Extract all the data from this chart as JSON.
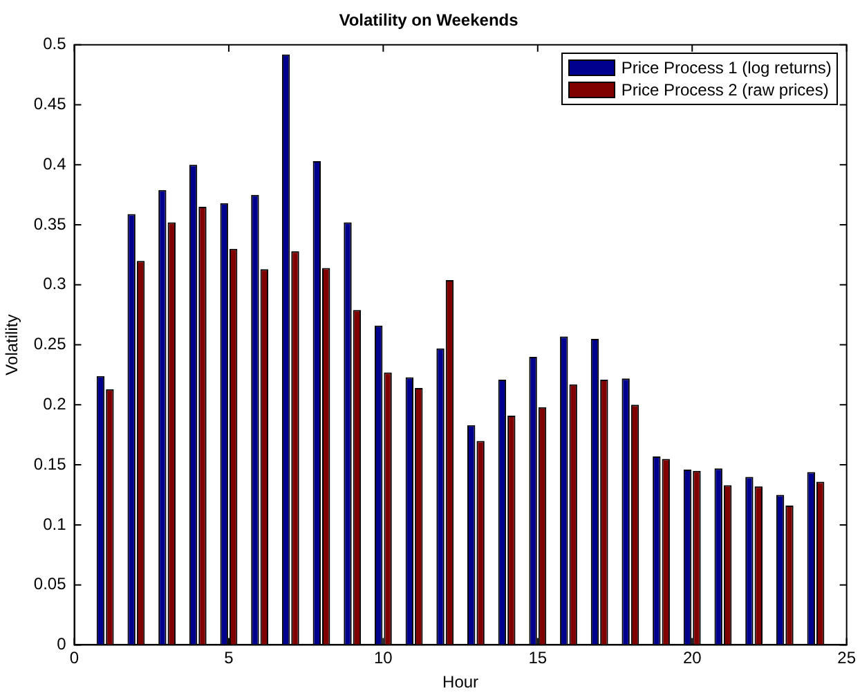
{
  "chart_data": {
    "type": "bar",
    "title": "Volatility on Weekends",
    "xlabel": "Hour",
    "ylabel": "Volatility",
    "x": [
      1,
      2,
      3,
      4,
      5,
      6,
      7,
      8,
      9,
      10,
      11,
      12,
      13,
      14,
      15,
      16,
      17,
      18,
      19,
      20,
      21,
      22,
      23,
      24
    ],
    "series": [
      {
        "name": "Price Process 1 (log returns)",
        "color": "#00008f",
        "values": [
          0.224,
          0.359,
          0.379,
          0.4,
          0.368,
          0.375,
          0.492,
          0.403,
          0.352,
          0.266,
          0.223,
          0.247,
          0.183,
          0.221,
          0.24,
          0.257,
          0.255,
          0.222,
          0.157,
          0.146,
          0.147,
          0.14,
          0.125,
          0.144
        ]
      },
      {
        "name": "Price Process 2 (raw prices)",
        "color": "#800000",
        "values": [
          0.213,
          0.32,
          0.352,
          0.365,
          0.33,
          0.313,
          0.328,
          0.314,
          0.279,
          0.227,
          0.214,
          0.304,
          0.17,
          0.191,
          0.198,
          0.217,
          0.221,
          0.2,
          0.155,
          0.145,
          0.133,
          0.132,
          0.116,
          0.136
        ]
      }
    ],
    "xlim": [
      0,
      25
    ],
    "xticks": [
      0,
      5,
      10,
      15,
      20,
      25
    ],
    "ylim": [
      0,
      0.5
    ],
    "yticks": [
      0,
      0.05,
      0.1,
      0.15,
      0.2,
      0.25,
      0.3,
      0.35,
      0.4,
      0.45,
      0.5
    ],
    "grid": false,
    "legend": "top right"
  }
}
